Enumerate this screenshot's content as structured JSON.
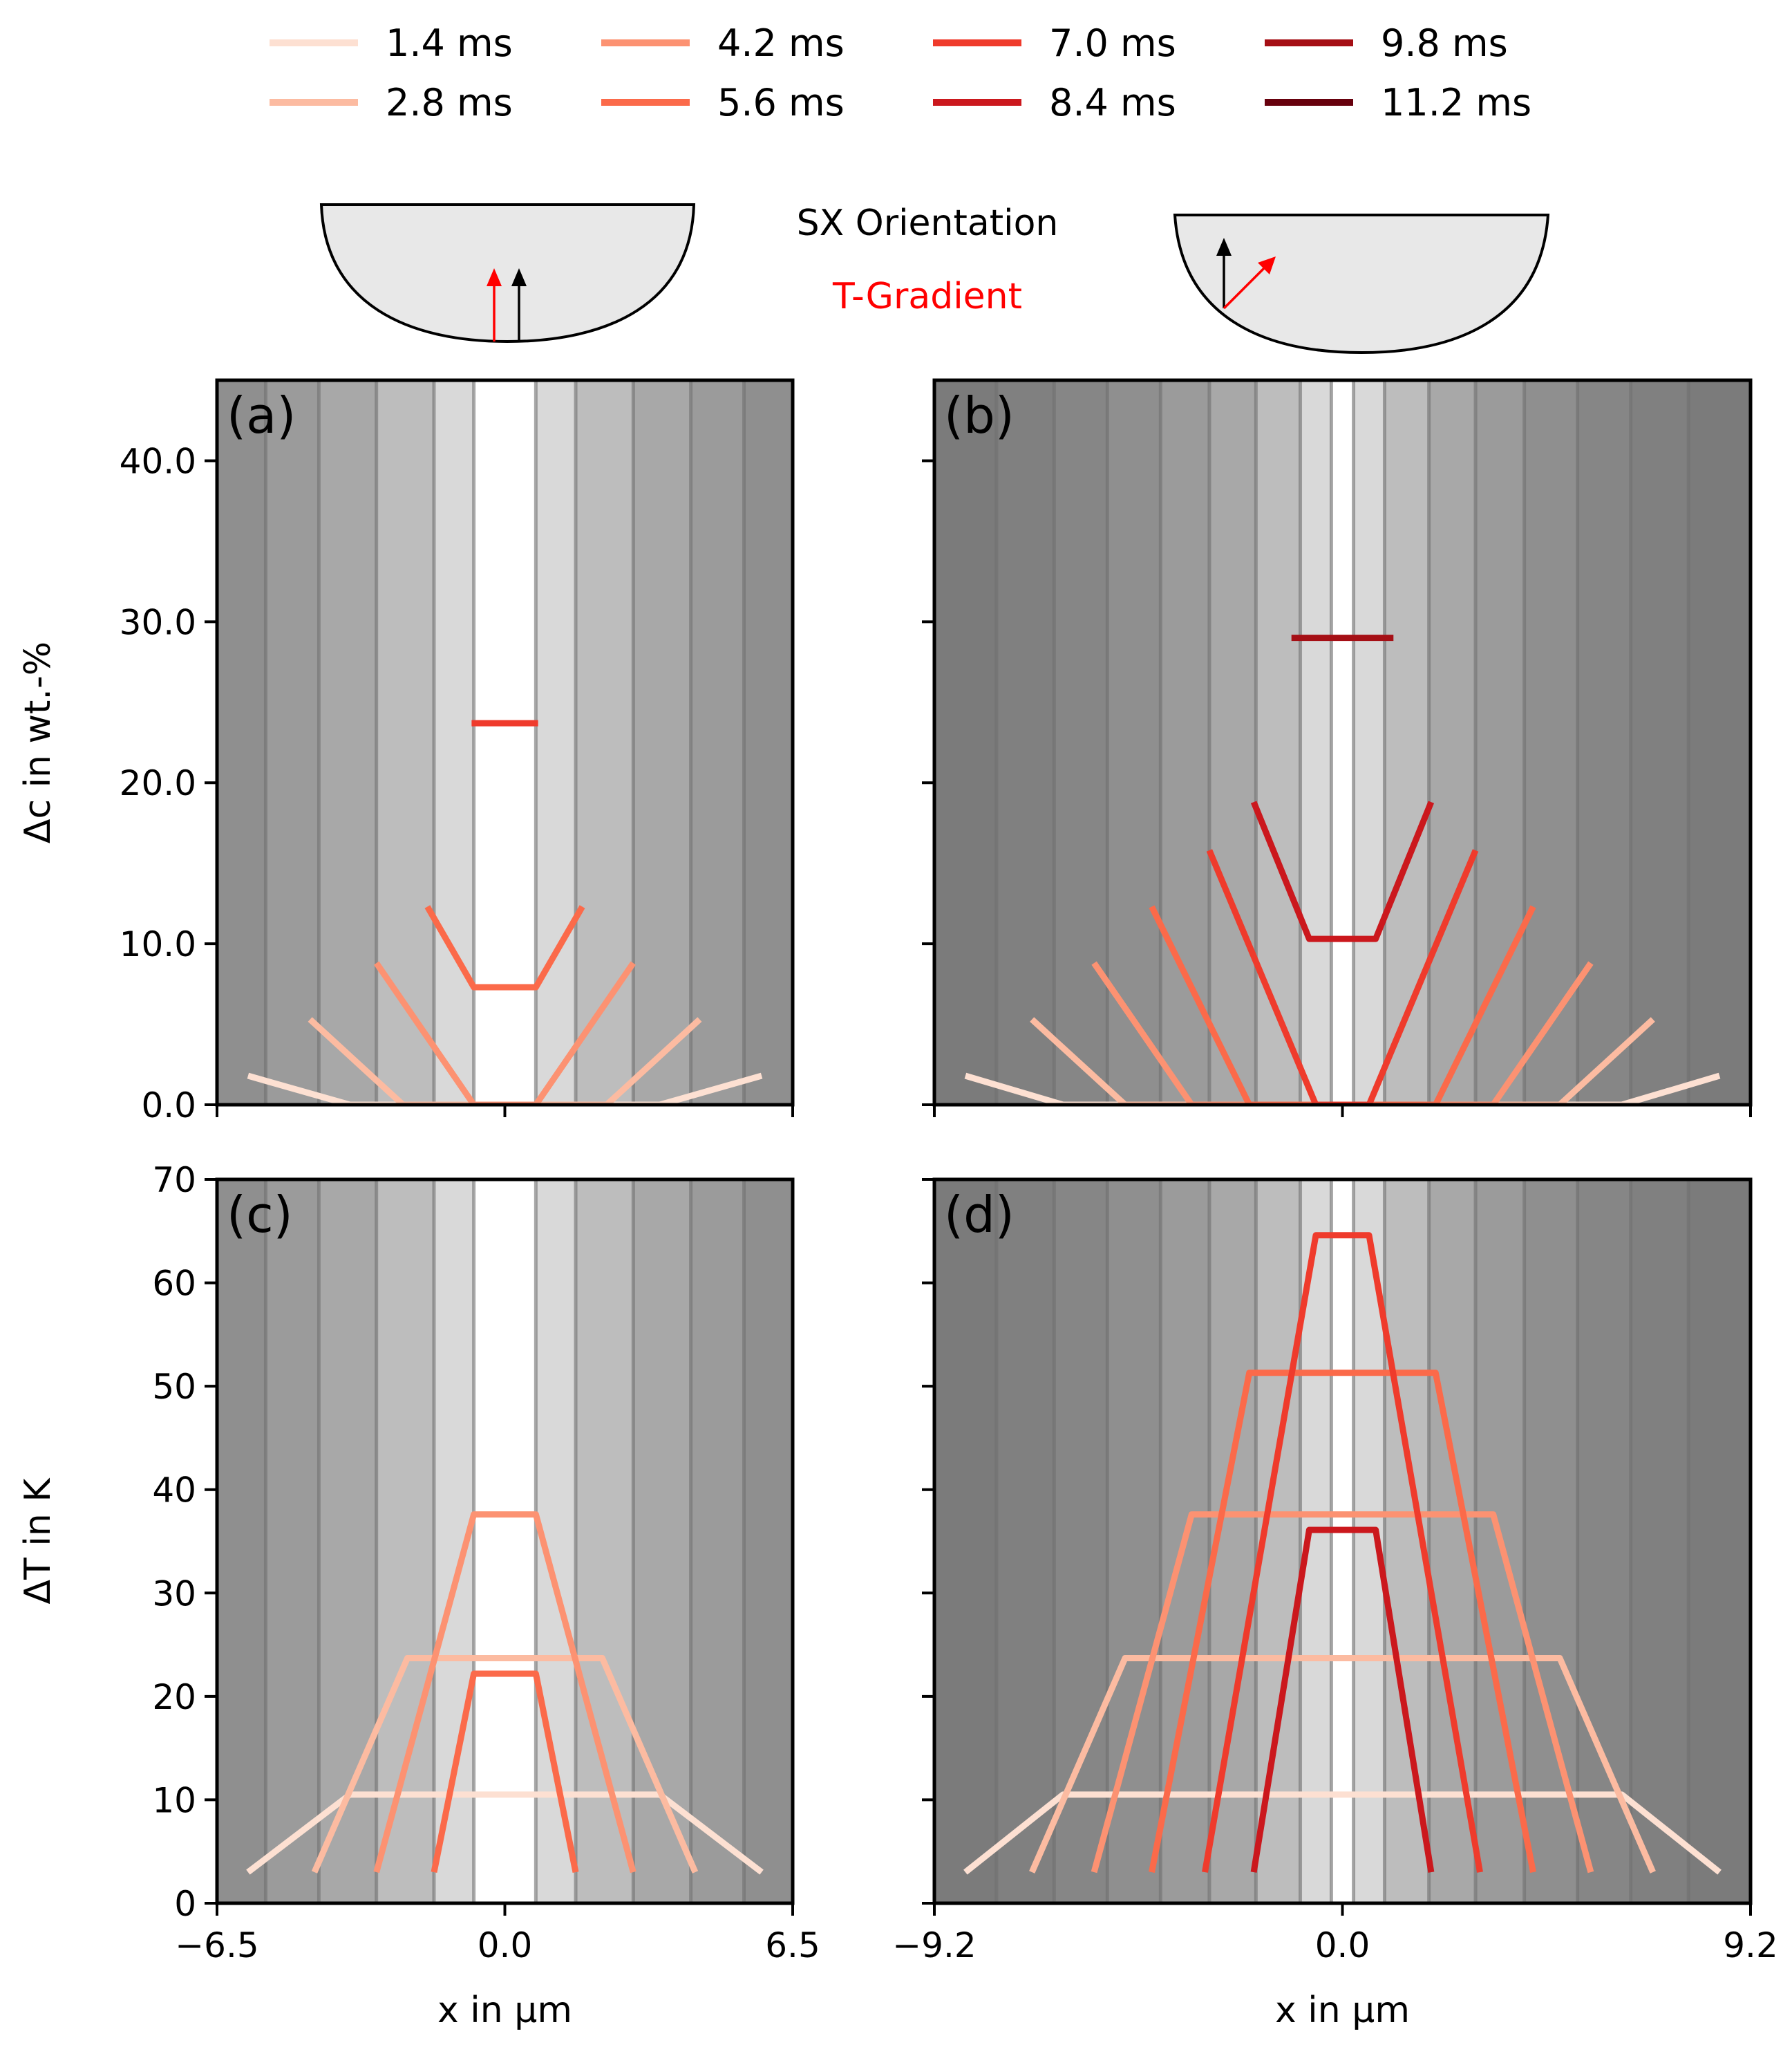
{
  "legend": [
    {
      "label": "1.4 ms",
      "color": "#fde0d2"
    },
    {
      "label": "2.8 ms",
      "color": "#fcbba1"
    },
    {
      "label": "4.2 ms",
      "color": "#fc9272"
    },
    {
      "label": "5.6 ms",
      "color": "#fb6a4a"
    },
    {
      "label": "7.0 ms",
      "color": "#ef3b2c"
    },
    {
      "label": "8.4 ms",
      "color": "#cb181d"
    },
    {
      "label": "9.8 ms",
      "color": "#a50f15"
    },
    {
      "label": "11.2 ms",
      "color": "#67000d"
    }
  ],
  "schematic": {
    "orientation_label": "SX Orientation",
    "gradient_label": "T-Gradient",
    "orientation_color": "#000000",
    "gradient_color": "#ff0000"
  },
  "chart_data": [
    {
      "id": "a",
      "type": "line",
      "panel_label": "(a)",
      "xlim": [
        -6.5,
        6.5
      ],
      "ylim": [
        0,
        45
      ],
      "xticks": [
        -6.5,
        0.0,
        6.5
      ],
      "xtick_labels": [
        "",
        "",
        ""
      ],
      "yticks": [
        0,
        10,
        20,
        30,
        40
      ],
      "ytick_labels": [
        "0.0",
        "10.0",
        "20.0",
        "30.0",
        "40.0"
      ],
      "ylabel": "Δc in wt.-%",
      "xlabel": "",
      "band_half_widths": [
        0.7,
        1.6,
        2.9,
        4.2,
        5.4,
        6.5
      ],
      "series": [
        {
          "name": "1.4 ms",
          "x": [
            -5.8,
            -3.5,
            3.5,
            5.8
          ],
          "y": [
            1.8,
            0,
            0,
            1.8
          ]
        },
        {
          "name": "2.8 ms",
          "x": [
            -4.4,
            -2.3,
            2.3,
            4.4
          ],
          "y": [
            5.3,
            0,
            0,
            5.3
          ]
        },
        {
          "name": "4.2 ms",
          "x": [
            -2.9,
            -0.7,
            0.7,
            2.9
          ],
          "y": [
            8.8,
            0,
            0,
            8.8
          ]
        },
        {
          "name": "5.6 ms",
          "x": [
            -1.75,
            -0.7,
            0.7,
            1.75
          ],
          "y": [
            12.3,
            7.3,
            7.3,
            12.3
          ]
        },
        {
          "name": "7.0 ms",
          "x": [
            -0.75,
            0.75
          ],
          "y": [
            23.7,
            23.7
          ]
        }
      ]
    },
    {
      "id": "b",
      "type": "line",
      "panel_label": "(b)",
      "xlim": [
        -9.2,
        9.2
      ],
      "ylim": [
        0,
        45
      ],
      "xticks": [
        -9.2,
        0.0,
        9.2
      ],
      "xtick_labels": [
        "",
        "",
        ""
      ],
      "yticks": [
        0,
        10,
        20,
        30,
        40
      ],
      "ytick_labels": [
        "",
        "",
        "",
        "",
        ""
      ],
      "ylabel": "",
      "xlabel": "",
      "band_half_widths": [
        0.25,
        0.95,
        1.95,
        3.0,
        4.1,
        5.3,
        6.5,
        7.8,
        9.2
      ],
      "series": [
        {
          "name": "1.4 ms",
          "x": [
            -8.5,
            -6.3,
            6.3,
            8.5
          ],
          "y": [
            1.8,
            0,
            0,
            1.8
          ]
        },
        {
          "name": "2.8 ms",
          "x": [
            -7.0,
            -4.9,
            4.9,
            7.0
          ],
          "y": [
            5.3,
            0,
            0,
            5.3
          ]
        },
        {
          "name": "4.2 ms",
          "x": [
            -5.6,
            -3.4,
            3.4,
            5.6
          ],
          "y": [
            8.8,
            0,
            0,
            8.8
          ]
        },
        {
          "name": "5.6 ms",
          "x": [
            -4.3,
            -2.1,
            2.1,
            4.3
          ],
          "y": [
            12.3,
            0,
            0,
            12.3
          ]
        },
        {
          "name": "7.0 ms",
          "x": [
            -3.0,
            -0.6,
            0.6,
            3.0
          ],
          "y": [
            15.8,
            0,
            0,
            15.8
          ]
        },
        {
          "name": "8.4 ms",
          "x": [
            -2.0,
            -0.75,
            0.75,
            2.0
          ],
          "y": [
            18.8,
            10.3,
            10.3,
            18.8
          ]
        },
        {
          "name": "9.8 ms",
          "x": [
            -1.15,
            1.15
          ],
          "y": [
            29.0,
            29.0
          ]
        }
      ]
    },
    {
      "id": "c",
      "type": "line",
      "panel_label": "(c)",
      "xlim": [
        -6.5,
        6.5
      ],
      "ylim": [
        0,
        70
      ],
      "xticks": [
        -6.5,
        0.0,
        6.5
      ],
      "xtick_labels": [
        "−6.5",
        "0.0",
        "6.5"
      ],
      "yticks": [
        0,
        10,
        20,
        30,
        40,
        50,
        60,
        70
      ],
      "ytick_labels": [
        "0",
        "10",
        "20",
        "30",
        "40",
        "50",
        "60",
        "70"
      ],
      "ylabel": "ΔT in K",
      "xlabel": "x in μm",
      "band_half_widths": [
        0.7,
        1.6,
        2.9,
        4.2,
        5.4,
        6.5
      ],
      "series": [
        {
          "name": "1.4 ms",
          "x": [
            -5.8,
            -3.5,
            3.5,
            5.8
          ],
          "y": [
            3,
            10.5,
            10.5,
            3
          ]
        },
        {
          "name": "2.8 ms",
          "x": [
            -4.3,
            -2.2,
            2.2,
            4.3
          ],
          "y": [
            3,
            23.7,
            23.7,
            3
          ]
        },
        {
          "name": "4.2 ms",
          "x": [
            -2.9,
            -0.7,
            0.7,
            2.9
          ],
          "y": [
            3,
            37.6,
            37.6,
            3
          ]
        },
        {
          "name": "5.6 ms",
          "x": [
            -1.6,
            -0.7,
            0.7,
            1.6
          ],
          "y": [
            3,
            22.2,
            22.2,
            3
          ]
        }
      ]
    },
    {
      "id": "d",
      "type": "line",
      "panel_label": "(d)",
      "xlim": [
        -9.2,
        9.2
      ],
      "ylim": [
        0,
        70
      ],
      "xticks": [
        -9.2,
        0.0,
        9.2
      ],
      "xtick_labels": [
        "−9.2",
        "0.0",
        "9.2"
      ],
      "yticks": [
        0,
        10,
        20,
        30,
        40,
        50,
        60,
        70
      ],
      "ytick_labels": [
        "",
        "",
        "",
        "",
        "",
        "",
        "",
        ""
      ],
      "ylabel": "",
      "xlabel": "x in μm",
      "band_half_widths": [
        0.25,
        0.95,
        1.95,
        3.0,
        4.1,
        5.3,
        6.5,
        7.8,
        9.2
      ],
      "series": [
        {
          "name": "1.4 ms",
          "x": [
            -8.5,
            -6.3,
            6.3,
            8.5
          ],
          "y": [
            3,
            10.5,
            10.5,
            3
          ]
        },
        {
          "name": "2.8 ms",
          "x": [
            -7.0,
            -4.9,
            4.9,
            7.0
          ],
          "y": [
            3,
            23.7,
            23.7,
            3
          ]
        },
        {
          "name": "4.2 ms",
          "x": [
            -5.6,
            -3.4,
            3.4,
            5.6
          ],
          "y": [
            3,
            37.6,
            37.6,
            3
          ]
        },
        {
          "name": "5.6 ms",
          "x": [
            -4.3,
            -2.1,
            2.1,
            4.3
          ],
          "y": [
            3,
            51.3,
            51.3,
            3
          ]
        },
        {
          "name": "7.0 ms",
          "x": [
            -3.1,
            -0.6,
            0.6,
            3.1
          ],
          "y": [
            3,
            64.6,
            64.6,
            3
          ]
        },
        {
          "name": "8.4 ms",
          "x": [
            -2.0,
            -0.75,
            0.75,
            2.0
          ],
          "y": [
            3,
            36.1,
            36.1,
            3
          ]
        }
      ]
    }
  ]
}
